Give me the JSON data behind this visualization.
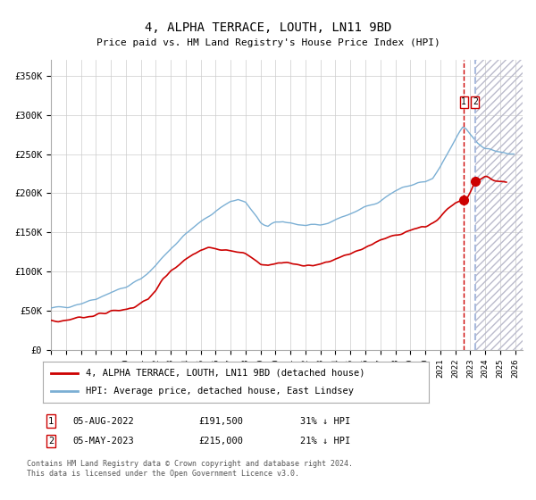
{
  "title": "4, ALPHA TERRACE, LOUTH, LN11 9BD",
  "subtitle": "Price paid vs. HM Land Registry's House Price Index (HPI)",
  "title_fontsize": 10,
  "subtitle_fontsize": 8.5,
  "xlim": [
    1995.0,
    2026.5
  ],
  "ylim": [
    0,
    370000
  ],
  "yticks": [
    0,
    50000,
    100000,
    150000,
    200000,
    250000,
    300000,
    350000
  ],
  "ytick_labels": [
    "£0",
    "£50K",
    "£100K",
    "£150K",
    "£200K",
    "£250K",
    "£300K",
    "£350K"
  ],
  "xtick_years": [
    1995,
    1996,
    1997,
    1998,
    1999,
    2000,
    2001,
    2002,
    2003,
    2004,
    2005,
    2006,
    2007,
    2008,
    2009,
    2010,
    2011,
    2012,
    2013,
    2014,
    2015,
    2016,
    2017,
    2018,
    2019,
    2020,
    2021,
    2022,
    2023,
    2024,
    2025,
    2026
  ],
  "hpi_color": "#7bafd4",
  "price_color": "#cc0000",
  "point_color": "#cc0000",
  "vline1_color": "#cc0000",
  "vline2_color": "#aabbdd",
  "grid_color": "#cccccc",
  "legend_label_red": "4, ALPHA TERRACE, LOUTH, LN11 9BD (detached house)",
  "legend_label_blue": "HPI: Average price, detached house, East Lindsey",
  "sale1_date": "05-AUG-2022",
  "sale1_price": "£191,500",
  "sale1_hpi": "31% ↓ HPI",
  "sale2_date": "05-MAY-2023",
  "sale2_price": "£215,000",
  "sale2_hpi": "21% ↓ HPI",
  "footer": "Contains HM Land Registry data © Crown copyright and database right 2024.\nThis data is licensed under the Open Government Licence v3.0.",
  "vline1_x": 2022.58,
  "vline2_x": 2023.33,
  "sale1_y": 191500,
  "sale2_y": 215000,
  "background_color": "#ffffff"
}
